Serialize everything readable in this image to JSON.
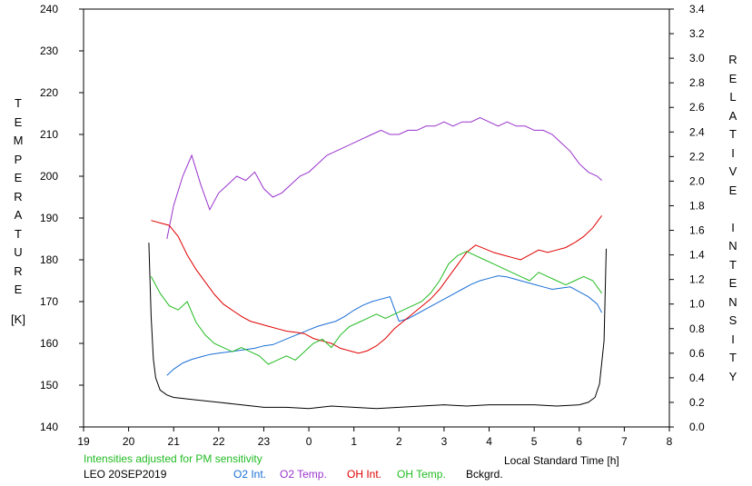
{
  "chart_data": {
    "type": "line",
    "left_axis_label_letters": [
      "T",
      "E",
      "M",
      "P",
      "E",
      "R",
      "A",
      "T",
      "U",
      "R",
      "E"
    ],
    "left_axis_unit": "[K]",
    "right_axis_label_letters": [
      "R",
      "E",
      "L",
      "A",
      "T",
      "I",
      "V",
      "E",
      "",
      "I",
      "N",
      "T",
      "E",
      "N",
      "S",
      "I",
      "T",
      "Y"
    ],
    "xlabel": "Local Standard Time [h]",
    "note": "Intensities adjusted for PM sensitivity",
    "station_date": "LEO 20SEP2019",
    "xlim": [
      19,
      32
    ],
    "x_tick_values": [
      19,
      20,
      21,
      22,
      23,
      24,
      25,
      26,
      27,
      28,
      29,
      30,
      31,
      32
    ],
    "x_tick_labels": [
      "19",
      "20",
      "21",
      "22",
      "23",
      "0",
      "1",
      "2",
      "3",
      "4",
      "5",
      "6",
      "7",
      "8"
    ],
    "ylim_left": [
      140,
      240
    ],
    "y_left_ticks": [
      "140",
      "150",
      "160",
      "170",
      "180",
      "190",
      "200",
      "210",
      "220",
      "230",
      "240"
    ],
    "ylim_right": [
      0.0,
      3.4
    ],
    "y_right_ticks": [
      "0.0",
      "0.2",
      "0.4",
      "0.6",
      "0.8",
      "1.0",
      "1.2",
      "1.4",
      "1.6",
      "1.8",
      "2.0",
      "2.2",
      "2.4",
      "2.6",
      "2.8",
      "3.0",
      "3.2",
      "3.4"
    ],
    "grid": false,
    "series": [
      {
        "name": "O2 Int.",
        "axis": "right",
        "color": "#1a6fd6",
        "x": [
          20.85,
          21.0,
          21.2,
          21.4,
          21.6,
          21.8,
          22.0,
          22.2,
          22.4,
          22.6,
          22.8,
          23.0,
          23.2,
          23.4,
          23.6,
          23.8,
          24.0,
          24.2,
          24.4,
          24.6,
          24.8,
          25.0,
          25.2,
          25.4,
          25.6,
          25.8,
          26.0,
          26.2,
          26.4,
          26.6,
          26.8,
          27.0,
          27.2,
          27.4,
          27.6,
          27.8,
          28.0,
          28.2,
          28.4,
          28.6,
          28.8,
          29.0,
          29.2,
          29.4,
          29.6,
          29.8,
          30.0,
          30.2,
          30.4,
          30.5
        ],
        "values": [
          0.42,
          0.47,
          0.52,
          0.55,
          0.57,
          0.59,
          0.6,
          0.61,
          0.62,
          0.63,
          0.64,
          0.66,
          0.67,
          0.7,
          0.73,
          0.76,
          0.79,
          0.82,
          0.84,
          0.86,
          0.9,
          0.95,
          0.99,
          1.02,
          1.04,
          1.06,
          0.86,
          0.88,
          0.92,
          0.96,
          1.0,
          1.04,
          1.08,
          1.12,
          1.16,
          1.19,
          1.21,
          1.23,
          1.22,
          1.2,
          1.18,
          1.16,
          1.14,
          1.12,
          1.13,
          1.14,
          1.1,
          1.06,
          1.0,
          0.93
        ]
      },
      {
        "name": "O2 Temp.",
        "axis": "left",
        "color": "#9933cc",
        "x": [
          20.85,
          21.0,
          21.2,
          21.4,
          21.6,
          21.8,
          22.0,
          22.2,
          22.4,
          22.6,
          22.8,
          23.0,
          23.2,
          23.4,
          23.6,
          23.8,
          24.0,
          24.2,
          24.4,
          24.6,
          24.8,
          25.0,
          25.2,
          25.4,
          25.6,
          25.8,
          26.0,
          26.2,
          26.4,
          26.6,
          26.8,
          27.0,
          27.2,
          27.4,
          27.6,
          27.8,
          28.0,
          28.2,
          28.4,
          28.6,
          28.8,
          29.0,
          29.2,
          29.4,
          29.6,
          29.8,
          30.0,
          30.2,
          30.4,
          30.5
        ],
        "values": [
          185,
          193,
          200,
          205,
          198,
          192,
          196,
          198,
          200,
          199,
          201,
          197,
          195,
          196,
          198,
          200,
          201,
          203,
          205,
          206,
          207,
          208,
          209,
          210,
          211,
          210,
          210,
          211,
          211,
          212,
          212,
          213,
          212,
          213,
          213,
          214,
          213,
          212,
          213,
          212,
          212,
          211,
          211,
          210,
          208,
          206,
          203,
          201,
          200,
          199
        ]
      },
      {
        "name": "OH Int.",
        "axis": "right",
        "color": "#e00000",
        "x": [
          20.5,
          20.7,
          20.9,
          21.1,
          21.3,
          21.5,
          21.7,
          21.9,
          22.1,
          22.3,
          22.5,
          22.7,
          22.9,
          23.1,
          23.3,
          23.5,
          23.7,
          23.9,
          24.1,
          24.3,
          24.5,
          24.7,
          24.9,
          25.1,
          25.3,
          25.5,
          25.7,
          25.9,
          26.1,
          26.3,
          26.5,
          26.7,
          26.9,
          27.1,
          27.3,
          27.5,
          27.7,
          27.9,
          28.1,
          28.3,
          28.5,
          28.7,
          28.9,
          29.1,
          29.3,
          29.5,
          29.7,
          29.9,
          30.1,
          30.3,
          30.5
        ],
        "values": [
          1.68,
          1.66,
          1.64,
          1.55,
          1.4,
          1.28,
          1.18,
          1.08,
          1.0,
          0.95,
          0.9,
          0.86,
          0.84,
          0.82,
          0.8,
          0.78,
          0.77,
          0.76,
          0.72,
          0.7,
          0.68,
          0.64,
          0.62,
          0.6,
          0.62,
          0.66,
          0.72,
          0.8,
          0.86,
          0.92,
          0.98,
          1.04,
          1.12,
          1.22,
          1.32,
          1.42,
          1.48,
          1.45,
          1.42,
          1.4,
          1.38,
          1.36,
          1.4,
          1.44,
          1.42,
          1.44,
          1.46,
          1.5,
          1.55,
          1.62,
          1.72
        ]
      },
      {
        "name": "OH Temp.",
        "axis": "left",
        "color": "#22bb22",
        "x": [
          20.5,
          20.7,
          20.9,
          21.1,
          21.3,
          21.5,
          21.7,
          21.9,
          22.1,
          22.3,
          22.5,
          22.7,
          22.9,
          23.1,
          23.3,
          23.5,
          23.7,
          23.9,
          24.1,
          24.3,
          24.5,
          24.7,
          24.9,
          25.1,
          25.3,
          25.5,
          25.7,
          25.9,
          26.1,
          26.3,
          26.5,
          26.7,
          26.9,
          27.1,
          27.3,
          27.5,
          27.7,
          27.9,
          28.1,
          28.3,
          28.5,
          28.7,
          28.9,
          29.1,
          29.3,
          29.5,
          29.7,
          29.9,
          30.1,
          30.3,
          30.5
        ],
        "values": [
          176,
          172,
          169,
          168,
          170,
          165,
          162,
          160,
          159,
          158,
          159,
          158,
          157,
          155,
          156,
          157,
          156,
          158,
          160,
          161,
          159,
          162,
          164,
          165,
          166,
          167,
          166,
          167,
          168,
          169,
          170,
          172,
          175,
          179,
          181,
          182,
          181,
          180,
          179,
          178,
          177,
          176,
          175,
          177,
          176,
          175,
          174,
          175,
          176,
          175,
          172
        ]
      },
      {
        "name": "Bckgrd.",
        "axis": "right",
        "color": "#000000",
        "x": [
          20.45,
          20.5,
          20.55,
          20.6,
          20.7,
          20.85,
          21.0,
          21.5,
          22.0,
          22.5,
          23.0,
          23.5,
          24.0,
          24.5,
          25.0,
          25.5,
          26.0,
          26.5,
          27.0,
          27.5,
          28.0,
          28.5,
          29.0,
          29.5,
          30.0,
          30.2,
          30.35,
          30.45,
          30.55,
          30.6
        ],
        "values": [
          1.5,
          0.9,
          0.55,
          0.4,
          0.3,
          0.26,
          0.24,
          0.22,
          0.2,
          0.18,
          0.16,
          0.16,
          0.15,
          0.17,
          0.16,
          0.15,
          0.16,
          0.17,
          0.18,
          0.17,
          0.18,
          0.18,
          0.18,
          0.17,
          0.18,
          0.2,
          0.24,
          0.35,
          0.7,
          1.45
        ]
      }
    ]
  },
  "legend": [
    {
      "label": "O2 Int.",
      "color": "#1a6fd6"
    },
    {
      "label": "O2 Temp.",
      "color": "#9933cc"
    },
    {
      "label": "OH Int.",
      "color": "#e00000"
    },
    {
      "label": "OH Temp.",
      "color": "#22bb22"
    },
    {
      "label": "Bckgrd.",
      "color": "#000000"
    }
  ]
}
